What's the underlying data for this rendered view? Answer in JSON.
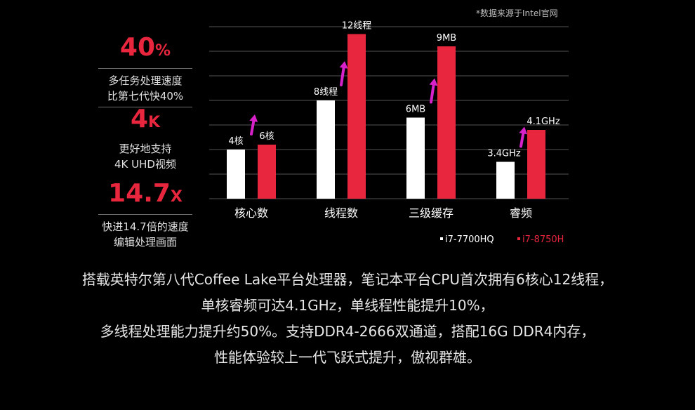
{
  "source_note": "*数据来源于Intel官网",
  "stats": [
    {
      "value": "40",
      "unit": "%",
      "line1": "多任务处理速度",
      "line2": "比第七代快40%"
    },
    {
      "value": "4",
      "unit": "K",
      "line1": "更好地支持",
      "line2": "4K UHD视频"
    },
    {
      "value": "14.7",
      "unit": "X",
      "line1": "快进14.7倍的速度",
      "line2": "编辑处理画面"
    }
  ],
  "paragraph": [
    "搭载英特尔第八代Coffee Lake平台处理器，笔记本平台CPU首次拥有6核心12线程，",
    "单核睿频可达4.1GHz，单线程性能提升10%，",
    "多线程处理能力提升约50%。支持DDR4-2666双通道，搭配16G DDR4内存，",
    "性能体验较上一代飞跃式提升，傲视群雄。"
  ],
  "colors": {
    "accent": "#e8263d",
    "old_bar": "#ffffff",
    "arrow": "#d622c8",
    "grid": "#555555"
  },
  "chart_data": {
    "type": "bar",
    "categories": [
      "核心数",
      "线程数",
      "三级缓存",
      "睿频"
    ],
    "series": [
      {
        "name": "i7-7700HQ",
        "values": [
          2,
          4,
          3.3,
          1.5
        ],
        "labels": [
          "4核",
          "8线程",
          "6MB",
          "3.4GHz"
        ]
      },
      {
        "name": "i7-8750H",
        "values": [
          2.2,
          6.7,
          6.2,
          2.8
        ],
        "labels": [
          "6核",
          "12线程",
          "9MB",
          "4.1GHz"
        ]
      }
    ],
    "ylim": [
      0,
      7
    ],
    "grid": true,
    "legend_position": "bottom-right",
    "xlabel": "",
    "ylabel": ""
  }
}
